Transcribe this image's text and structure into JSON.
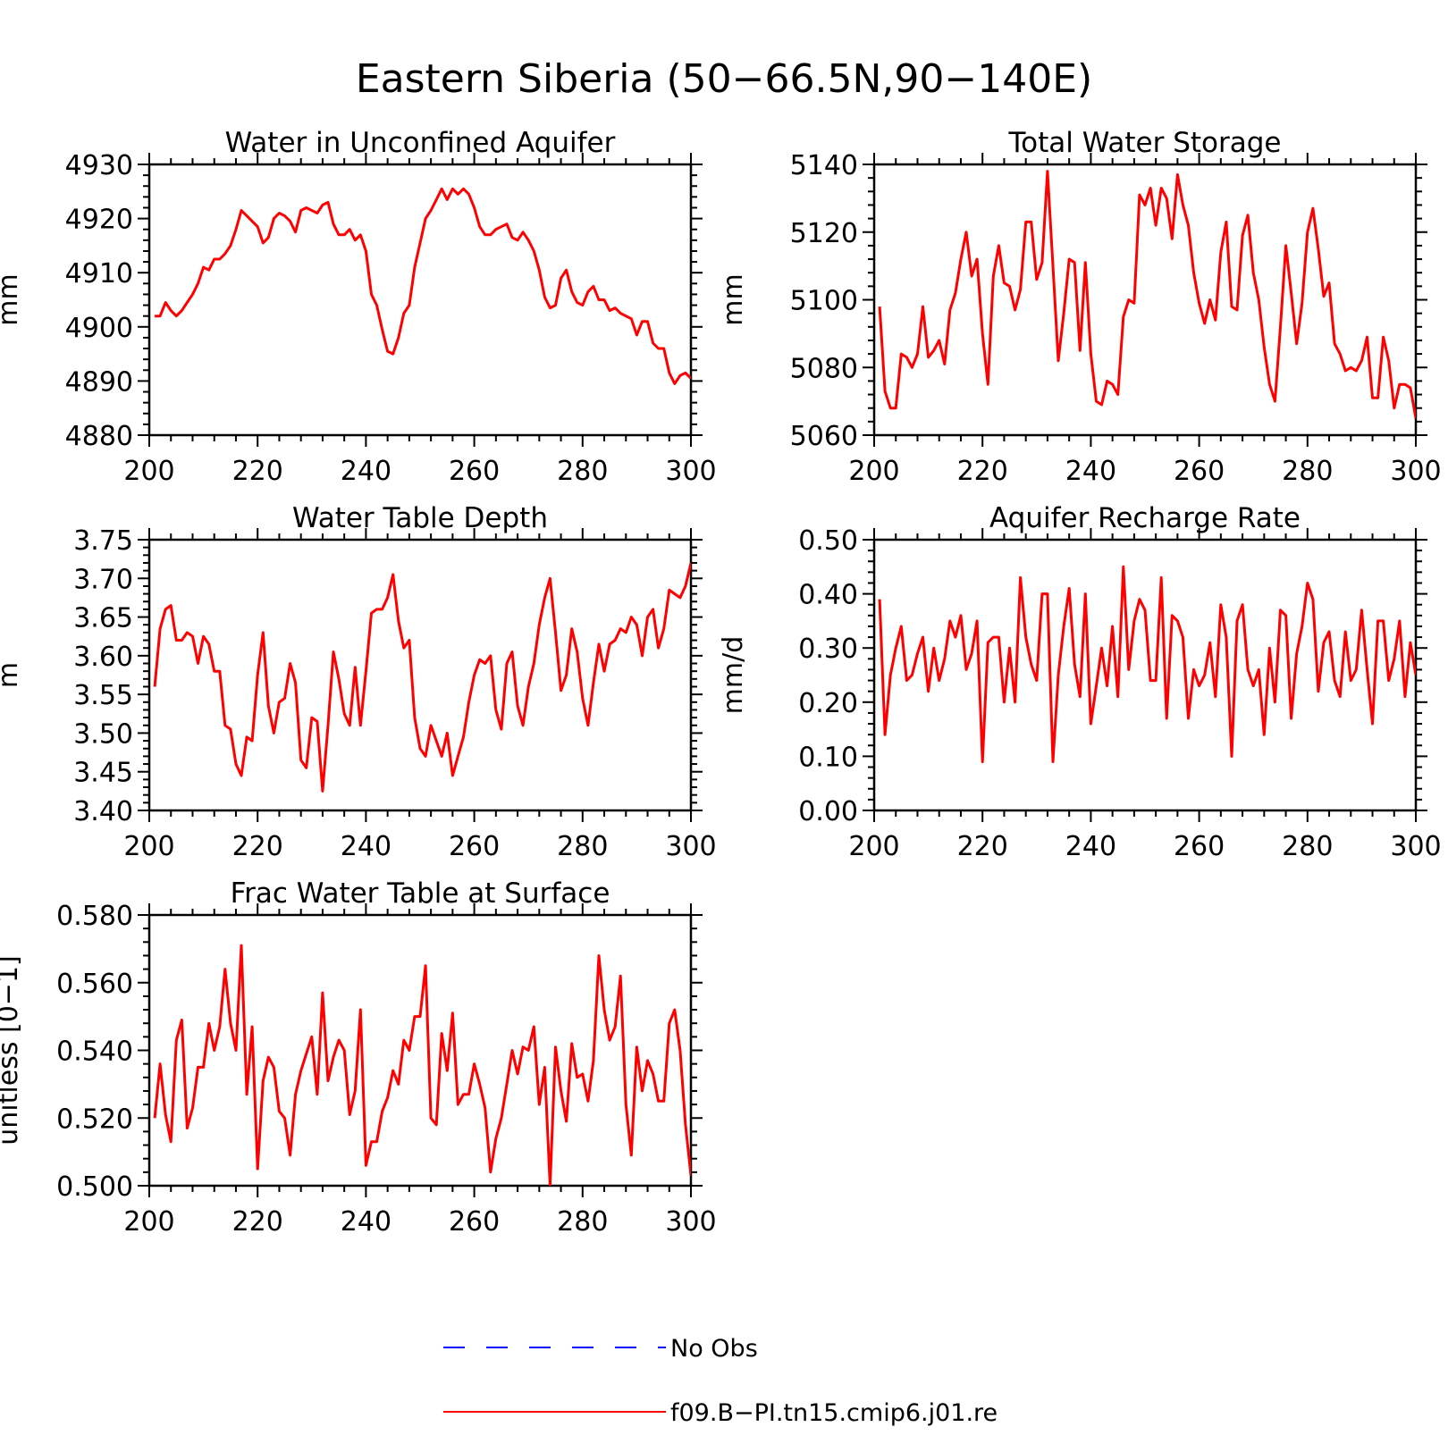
{
  "figure": {
    "title": "Eastern Siberia (50−66.5N,90−140E)"
  },
  "legend": [
    {
      "name": "No Obs",
      "color": "#0000ff",
      "style": "dashed"
    },
    {
      "name": "f09.B−PI.tn15.cmip6.j01.re",
      "color": "#ff0000",
      "style": "solid"
    }
  ],
  "chart_data": [
    {
      "type": "line",
      "title": "Water in Unconfined Aquifer",
      "ylabel": "mm",
      "xlim": [
        200,
        300
      ],
      "ylim": [
        4880,
        4930
      ],
      "xticks": [
        200,
        220,
        240,
        260,
        280,
        300
      ],
      "yticks": [
        4880,
        4890,
        4900,
        4910,
        4920,
        4930
      ],
      "ytick_labels": [
        "4880",
        "4890",
        "4900",
        "4910",
        "4920",
        "4930"
      ],
      "x": [
        201,
        202,
        203,
        204,
        205,
        206,
        207,
        208,
        209,
        210,
        211,
        212,
        213,
        214,
        215,
        216,
        217,
        218,
        219,
        220,
        221,
        222,
        223,
        224,
        225,
        226,
        227,
        228,
        229,
        230,
        231,
        232,
        233,
        234,
        235,
        236,
        237,
        238,
        239,
        240,
        241,
        242,
        243,
        244,
        245,
        246,
        247,
        248,
        249,
        250,
        251,
        252,
        253,
        254,
        255,
        256,
        257,
        258,
        259,
        260,
        261,
        262,
        263,
        264,
        265,
        266,
        267,
        268,
        269,
        270,
        271,
        272,
        273,
        274,
        275,
        276,
        277,
        278,
        279,
        280,
        281,
        282,
        283,
        284,
        285,
        286,
        287,
        288,
        289,
        290,
        291,
        292,
        293,
        294,
        295,
        296,
        297,
        298,
        299,
        300
      ],
      "series": [
        {
          "color": "#ff0000",
          "values": [
            4902,
            4902,
            4904.5,
            4903,
            4902,
            4903,
            4904.5,
            4906,
            4908,
            4911,
            4910.5,
            4912.5,
            4912.5,
            4913.5,
            4915,
            4918,
            4921.5,
            4920.5,
            4919.5,
            4918.5,
            4915.5,
            4916.5,
            4920,
            4921,
            4920.5,
            4919.5,
            4917.5,
            4921.5,
            4922,
            4921.5,
            4921,
            4922.5,
            4923,
            4919,
            4917,
            4917,
            4918,
            4916,
            4917,
            4914,
            4906,
            4904,
            4899.5,
            4895.5,
            4895,
            4898,
            4902.5,
            4904,
            4911,
            4915.5,
            4920,
            4921.5,
            4923.5,
            4925.5,
            4923.5,
            4925.5,
            4924.5,
            4925.5,
            4924.5,
            4922,
            4918.5,
            4917,
            4917,
            4918,
            4918.5,
            4919,
            4916.5,
            4916,
            4917.5,
            4916,
            4914,
            4910.5,
            4905.5,
            4903.5,
            4904,
            4909,
            4910.5,
            4906.5,
            4904.5,
            4904,
            4906.5,
            4907.5,
            4905,
            4905,
            4903,
            4903.5,
            4902.5,
            4902,
            4901.5,
            4898.5,
            4901,
            4901,
            4897,
            4896,
            4896,
            4891.5,
            4889.5,
            4891,
            4891.5,
            4890.5
          ]
        }
      ]
    },
    {
      "type": "line",
      "title": "Total Water Storage",
      "ylabel": "mm",
      "xlim": [
        200,
        300
      ],
      "ylim": [
        5060,
        5140
      ],
      "xticks": [
        200,
        220,
        240,
        260,
        280,
        300
      ],
      "yticks": [
        5060,
        5080,
        5100,
        5120,
        5140
      ],
      "ytick_labels": [
        "5060",
        "5080",
        "5100",
        "5120",
        "5140"
      ],
      "x": [
        201,
        202,
        203,
        204,
        205,
        206,
        207,
        208,
        209,
        210,
        211,
        212,
        213,
        214,
        215,
        216,
        217,
        218,
        219,
        220,
        221,
        222,
        223,
        224,
        225,
        226,
        227,
        228,
        229,
        230,
        231,
        232,
        233,
        234,
        235,
        236,
        237,
        238,
        239,
        240,
        241,
        242,
        243,
        244,
        245,
        246,
        247,
        248,
        249,
        250,
        251,
        252,
        253,
        254,
        255,
        256,
        257,
        258,
        259,
        260,
        261,
        262,
        263,
        264,
        265,
        266,
        267,
        268,
        269,
        270,
        271,
        272,
        273,
        274,
        275,
        276,
        277,
        278,
        279,
        280,
        281,
        282,
        283,
        284,
        285,
        286,
        287,
        288,
        289,
        290,
        291,
        292,
        293,
        294,
        295,
        296,
        297,
        298,
        299,
        300
      ],
      "series": [
        {
          "color": "#ff0000",
          "values": [
            5098,
            5073,
            5068,
            5068,
            5084,
            5083,
            5080,
            5084,
            5098,
            5083,
            5085,
            5088,
            5081,
            5097,
            5102,
            5112,
            5120,
            5107,
            5112,
            5090,
            5075,
            5107,
            5116,
            5105,
            5104,
            5097,
            5103,
            5123,
            5123,
            5106,
            5111,
            5138,
            5110,
            5082,
            5096,
            5112,
            5111,
            5085,
            5111,
            5084,
            5070,
            5069,
            5076,
            5075,
            5072,
            5095,
            5100,
            5099,
            5131,
            5128,
            5133,
            5122,
            5133,
            5130,
            5118,
            5137,
            5128,
            5122,
            5108,
            5099,
            5093,
            5100,
            5094,
            5114,
            5123,
            5098,
            5097,
            5119,
            5125,
            5108,
            5100,
            5086,
            5075,
            5070,
            5092,
            5116,
            5102,
            5087,
            5099,
            5120,
            5127,
            5115,
            5101,
            5105,
            5087,
            5084,
            5079,
            5080,
            5079,
            5082,
            5089,
            5071,
            5071,
            5089,
            5082,
            5068,
            5075,
            5075,
            5074,
            5065
          ]
        }
      ]
    },
    {
      "type": "line",
      "title": "Water Table Depth",
      "ylabel": "m",
      "xlim": [
        200,
        300
      ],
      "ylim": [
        3.4,
        3.75
      ],
      "xticks": [
        200,
        220,
        240,
        260,
        280,
        300
      ],
      "yticks": [
        3.4,
        3.45,
        3.5,
        3.55,
        3.6,
        3.65,
        3.7,
        3.75
      ],
      "ytick_labels": [
        "3.40",
        "3.45",
        "3.50",
        "3.55",
        "3.60",
        "3.65",
        "3.70",
        "3.75"
      ],
      "x": [
        201,
        202,
        203,
        204,
        205,
        206,
        207,
        208,
        209,
        210,
        211,
        212,
        213,
        214,
        215,
        216,
        217,
        218,
        219,
        220,
        221,
        222,
        223,
        224,
        225,
        226,
        227,
        228,
        229,
        230,
        231,
        232,
        233,
        234,
        235,
        236,
        237,
        238,
        239,
        240,
        241,
        242,
        243,
        244,
        245,
        246,
        247,
        248,
        249,
        250,
        251,
        252,
        253,
        254,
        255,
        256,
        257,
        258,
        259,
        260,
        261,
        262,
        263,
        264,
        265,
        266,
        267,
        268,
        269,
        270,
        271,
        272,
        273,
        274,
        275,
        276,
        277,
        278,
        279,
        280,
        281,
        282,
        283,
        284,
        285,
        286,
        287,
        288,
        289,
        290,
        291,
        292,
        293,
        294,
        295,
        296,
        297,
        298,
        299,
        300
      ],
      "series": [
        {
          "color": "#ff0000",
          "values": [
            3.56,
            3.635,
            3.66,
            3.665,
            3.62,
            3.62,
            3.63,
            3.625,
            3.59,
            3.625,
            3.615,
            3.58,
            3.58,
            3.51,
            3.505,
            3.46,
            3.445,
            3.495,
            3.49,
            3.575,
            3.63,
            3.535,
            3.5,
            3.54,
            3.545,
            3.59,
            3.565,
            3.465,
            3.455,
            3.52,
            3.515,
            3.425,
            3.51,
            3.605,
            3.57,
            3.525,
            3.51,
            3.585,
            3.51,
            3.58,
            3.655,
            3.66,
            3.66,
            3.675,
            3.705,
            3.645,
            3.61,
            3.62,
            3.52,
            3.48,
            3.47,
            3.51,
            3.49,
            3.47,
            3.5,
            3.445,
            3.47,
            3.495,
            3.54,
            3.575,
            3.595,
            3.59,
            3.6,
            3.53,
            3.505,
            3.59,
            3.605,
            3.535,
            3.51,
            3.56,
            3.59,
            3.64,
            3.675,
            3.7,
            3.63,
            3.555,
            3.575,
            3.635,
            3.605,
            3.545,
            3.51,
            3.565,
            3.615,
            3.58,
            3.615,
            3.62,
            3.635,
            3.63,
            3.65,
            3.64,
            3.6,
            3.65,
            3.66,
            3.61,
            3.635,
            3.685,
            3.68,
            3.675,
            3.69,
            3.72
          ]
        }
      ]
    },
    {
      "type": "line",
      "title": "Aquifer Recharge Rate",
      "ylabel": "mm/d",
      "xlim": [
        200,
        300
      ],
      "ylim": [
        0.0,
        0.5
      ],
      "xticks": [
        200,
        220,
        240,
        260,
        280,
        300
      ],
      "yticks": [
        0.0,
        0.1,
        0.2,
        0.3,
        0.4,
        0.5
      ],
      "ytick_labels": [
        "0.00",
        "0.10",
        "0.20",
        "0.30",
        "0.40",
        "0.50"
      ],
      "x": [
        201,
        202,
        203,
        204,
        205,
        206,
        207,
        208,
        209,
        210,
        211,
        212,
        213,
        214,
        215,
        216,
        217,
        218,
        219,
        220,
        221,
        222,
        223,
        224,
        225,
        226,
        227,
        228,
        229,
        230,
        231,
        232,
        233,
        234,
        235,
        236,
        237,
        238,
        239,
        240,
        241,
        242,
        243,
        244,
        245,
        246,
        247,
        248,
        249,
        250,
        251,
        252,
        253,
        254,
        255,
        256,
        257,
        258,
        259,
        260,
        261,
        262,
        263,
        264,
        265,
        266,
        267,
        268,
        269,
        270,
        271,
        272,
        273,
        274,
        275,
        276,
        277,
        278,
        279,
        280,
        281,
        282,
        283,
        284,
        285,
        286,
        287,
        288,
        289,
        290,
        291,
        292,
        293,
        294,
        295,
        296,
        297,
        298,
        299,
        300
      ],
      "series": [
        {
          "color": "#ff0000",
          "values": [
            0.39,
            0.14,
            0.25,
            0.3,
            0.34,
            0.24,
            0.25,
            0.29,
            0.32,
            0.22,
            0.3,
            0.24,
            0.28,
            0.35,
            0.32,
            0.36,
            0.26,
            0.29,
            0.35,
            0.09,
            0.31,
            0.32,
            0.32,
            0.2,
            0.3,
            0.2,
            0.43,
            0.32,
            0.27,
            0.24,
            0.4,
            0.4,
            0.09,
            0.25,
            0.34,
            0.41,
            0.27,
            0.21,
            0.4,
            0.16,
            0.23,
            0.3,
            0.23,
            0.34,
            0.21,
            0.45,
            0.26,
            0.35,
            0.39,
            0.37,
            0.24,
            0.24,
            0.43,
            0.17,
            0.36,
            0.35,
            0.32,
            0.17,
            0.26,
            0.23,
            0.25,
            0.31,
            0.21,
            0.38,
            0.32,
            0.1,
            0.35,
            0.38,
            0.26,
            0.23,
            0.26,
            0.14,
            0.3,
            0.2,
            0.37,
            0.36,
            0.17,
            0.29,
            0.34,
            0.42,
            0.39,
            0.22,
            0.31,
            0.33,
            0.24,
            0.21,
            0.33,
            0.24,
            0.26,
            0.37,
            0.26,
            0.16,
            0.35,
            0.35,
            0.24,
            0.28,
            0.35,
            0.21,
            0.31,
            0.25
          ]
        }
      ]
    },
    {
      "type": "line",
      "title": "Frac Water Table at Surface",
      "ylabel": "unitless [0−1]",
      "xlim": [
        200,
        300
      ],
      "ylim": [
        0.5,
        0.58
      ],
      "xticks": [
        200,
        220,
        240,
        260,
        280,
        300
      ],
      "yticks": [
        0.5,
        0.52,
        0.54,
        0.56,
        0.58
      ],
      "ytick_labels": [
        "0.500",
        "0.520",
        "0.540",
        "0.560",
        "0.580"
      ],
      "x": [
        201,
        202,
        203,
        204,
        205,
        206,
        207,
        208,
        209,
        210,
        211,
        212,
        213,
        214,
        215,
        216,
        217,
        218,
        219,
        220,
        221,
        222,
        223,
        224,
        225,
        226,
        227,
        228,
        229,
        230,
        231,
        232,
        233,
        234,
        235,
        236,
        237,
        238,
        239,
        240,
        241,
        242,
        243,
        244,
        245,
        246,
        247,
        248,
        249,
        250,
        251,
        252,
        253,
        254,
        255,
        256,
        257,
        258,
        259,
        260,
        261,
        262,
        263,
        264,
        265,
        266,
        267,
        268,
        269,
        270,
        271,
        272,
        273,
        274,
        275,
        276,
        277,
        278,
        279,
        280,
        281,
        282,
        283,
        284,
        285,
        286,
        287,
        288,
        289,
        290,
        291,
        292,
        293,
        294,
        295,
        296,
        297,
        298,
        299,
        300
      ],
      "series": [
        {
          "color": "#ff0000",
          "values": [
            0.52,
            0.536,
            0.521,
            0.513,
            0.543,
            0.549,
            0.517,
            0.523,
            0.535,
            0.535,
            0.548,
            0.54,
            0.547,
            0.564,
            0.548,
            0.54,
            0.571,
            0.527,
            0.547,
            0.505,
            0.531,
            0.538,
            0.535,
            0.522,
            0.52,
            0.509,
            0.527,
            0.534,
            0.539,
            0.544,
            0.527,
            0.557,
            0.531,
            0.538,
            0.543,
            0.54,
            0.521,
            0.528,
            0.552,
            0.506,
            0.513,
            0.513,
            0.522,
            0.526,
            0.534,
            0.53,
            0.543,
            0.54,
            0.55,
            0.55,
            0.565,
            0.52,
            0.518,
            0.545,
            0.534,
            0.551,
            0.524,
            0.527,
            0.527,
            0.536,
            0.53,
            0.523,
            0.504,
            0.514,
            0.52,
            0.53,
            0.54,
            0.533,
            0.541,
            0.54,
            0.547,
            0.524,
            0.535,
            0.5,
            0.541,
            0.528,
            0.519,
            0.542,
            0.532,
            0.533,
            0.525,
            0.537,
            0.568,
            0.552,
            0.543,
            0.547,
            0.562,
            0.524,
            0.509,
            0.541,
            0.528,
            0.537,
            0.533,
            0.525,
            0.525,
            0.548,
            0.552,
            0.54,
            0.518,
            0.503
          ]
        }
      ]
    }
  ]
}
